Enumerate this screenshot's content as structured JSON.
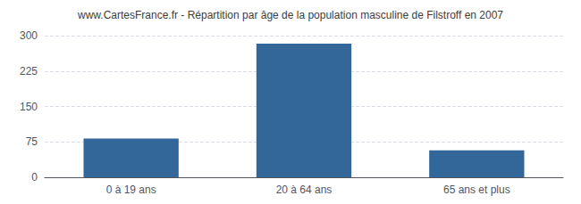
{
  "chart_data": {
    "type": "bar",
    "title": "www.CartesFrance.fr - Répartition par âge de la population masculine de Filstroff en 2007",
    "categories": [
      "0 à 19 ans",
      "20 à 64 ans",
      "65 ans et plus"
    ],
    "values": [
      82,
      283,
      57
    ],
    "color": "#336699",
    "ylim": [
      0,
      300
    ],
    "yticks": [
      0,
      75,
      150,
      225,
      300
    ],
    "grid": true
  }
}
